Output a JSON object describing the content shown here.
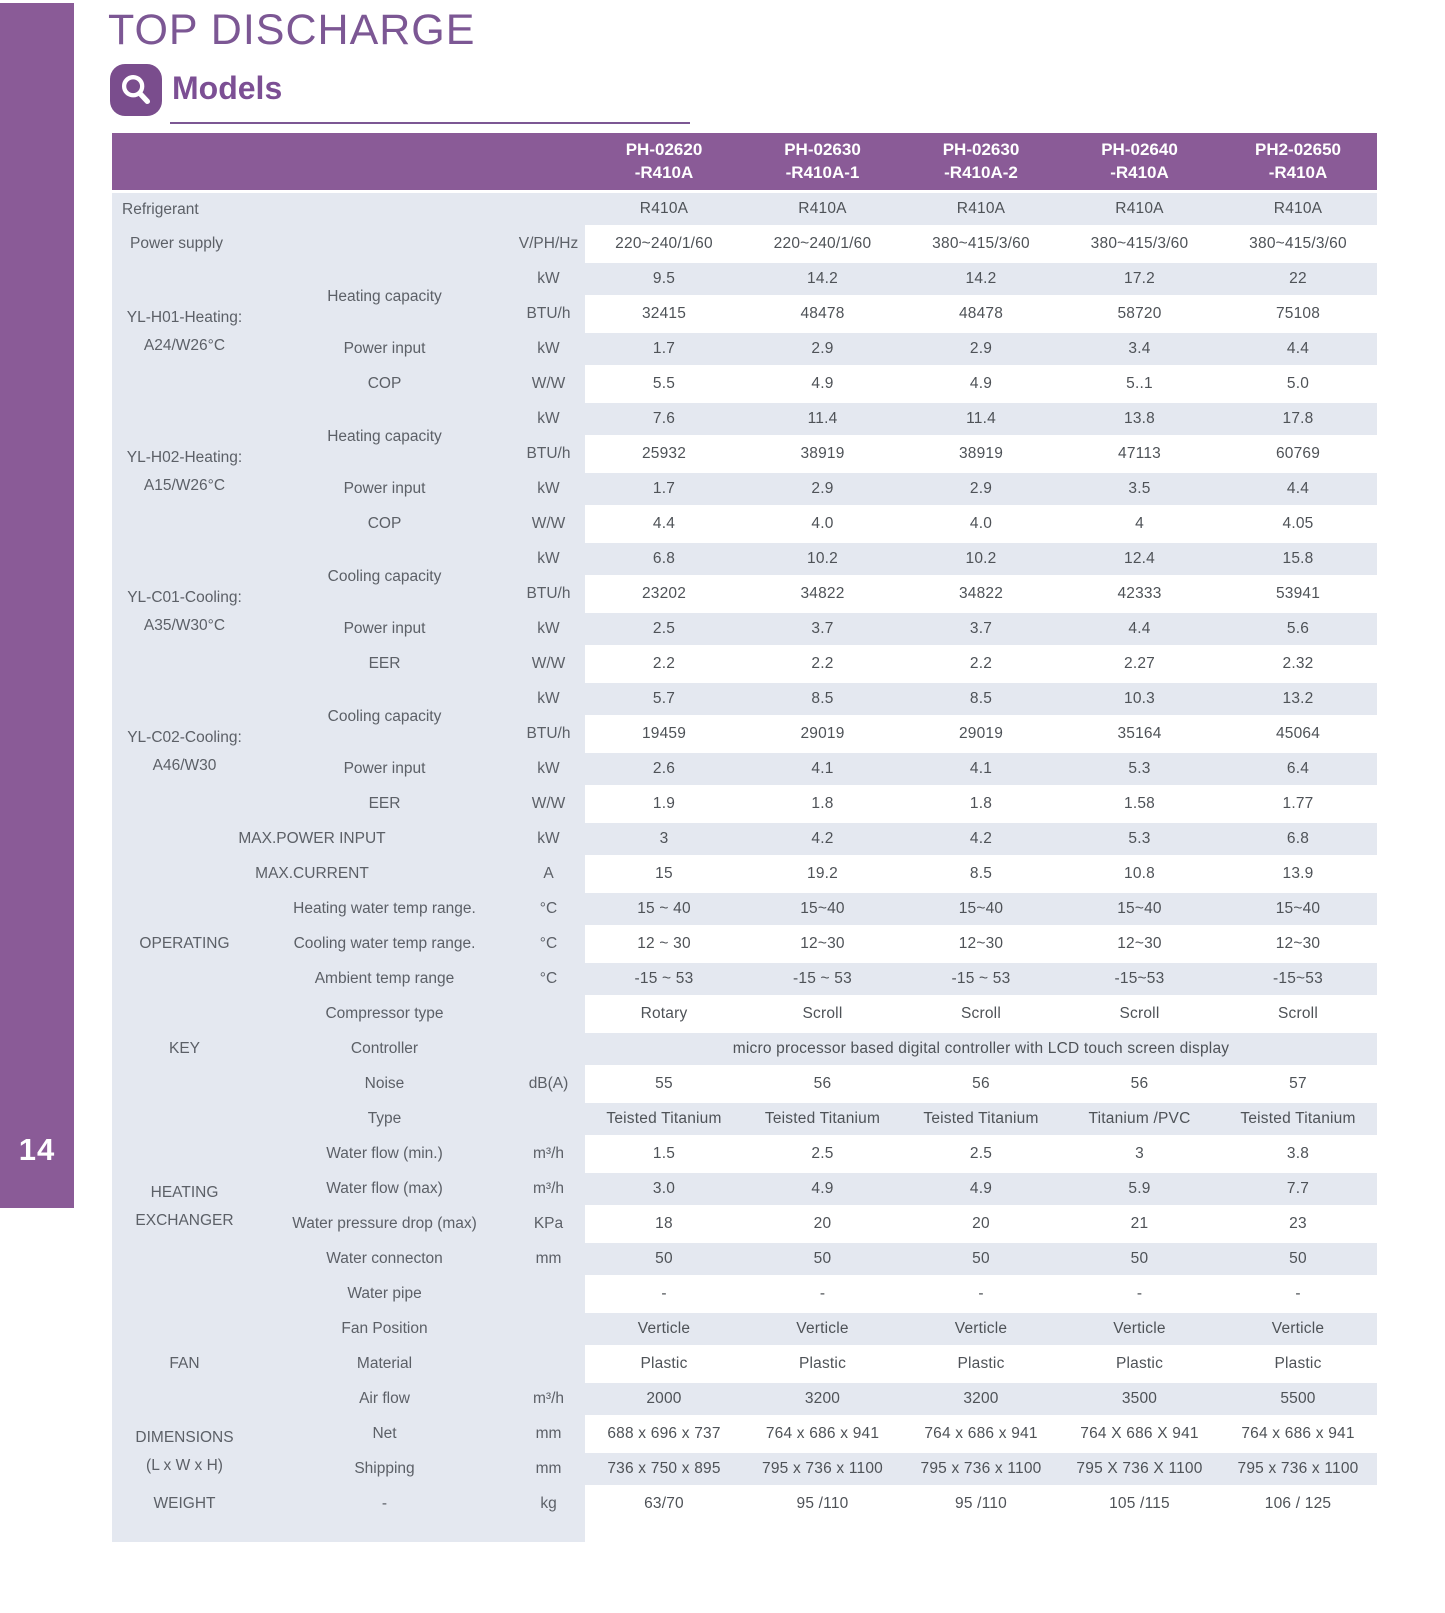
{
  "page": {
    "number": "14",
    "title": "TOP DISCHARGE",
    "subtitle": "Models"
  },
  "colors": {
    "purple": "#8a5b97",
    "purple_dark": "#7a4d8d",
    "row_gray": "#e4e8f0",
    "text_gray": "#55585e"
  },
  "icons": {
    "models_badge": "magnifier-icon"
  },
  "table": {
    "model_columns": [
      {
        "line1": "PH-02620",
        "line2": "-R410A"
      },
      {
        "line1": "PH-02630",
        "line2": "-R410A-1"
      },
      {
        "line1": "PH-02630",
        "line2": "-R410A-2"
      },
      {
        "line1": "PH-02640",
        "line2": "-R410A"
      },
      {
        "line1": "PH2-02650",
        "line2": "-R410A"
      }
    ],
    "rows": [
      {
        "label": "Refrigerant",
        "label_colspan": 3,
        "label_align": "left",
        "shade": "g",
        "values": [
          "R410A",
          "R410A",
          "R410A",
          "R410A",
          "R410A"
        ]
      },
      {
        "label": "Power supply",
        "label_colspan": 2,
        "label_align": "left",
        "indent": true,
        "unit": "V/PH/Hz",
        "shade": "w",
        "values": [
          "220~240/1/60",
          "220~240/1/60",
          "380~415/3/60",
          "380~415/3/60",
          "380~415/3/60"
        ]
      },
      {
        "group": [
          "YL-H01-Heating:",
          "A24/W26°C"
        ],
        "group_rowspan": 4,
        "param": "Heating capacity",
        "param_rowspan": 2,
        "unit": "kW",
        "shade": "g",
        "values": [
          "9.5",
          "14.2",
          "14.2",
          "17.2",
          "22"
        ]
      },
      {
        "unit": "BTU/h",
        "shade": "w",
        "values": [
          "32415",
          "48478",
          "48478",
          "58720",
          "75108"
        ]
      },
      {
        "param": "Power input",
        "unit": "kW",
        "shade": "g",
        "values": [
          "1.7",
          "2.9",
          "2.9",
          "3.4",
          "4.4"
        ]
      },
      {
        "param": "COP",
        "unit": "W/W",
        "shade": "w",
        "values": [
          "5.5",
          "4.9",
          "4.9",
          "5..1",
          "5.0"
        ]
      },
      {
        "group": [
          "YL-H02-Heating:",
          "A15/W26°C"
        ],
        "group_rowspan": 4,
        "param": "Heating capacity",
        "param_rowspan": 2,
        "unit": "kW",
        "shade": "g",
        "values": [
          "7.6",
          "11.4",
          "11.4",
          "13.8",
          "17.8"
        ]
      },
      {
        "unit": "BTU/h",
        "shade": "w",
        "values": [
          "25932",
          "38919",
          "38919",
          "47113",
          "60769"
        ]
      },
      {
        "param": "Power input",
        "unit": "kW",
        "shade": "g",
        "values": [
          "1.7",
          "2.9",
          "2.9",
          "3.5",
          "4.4"
        ]
      },
      {
        "param": "COP",
        "unit": "W/W",
        "shade": "w",
        "values": [
          "4.4",
          "4.0",
          "4.0",
          "4",
          "4.05"
        ]
      },
      {
        "group": [
          "YL-C01-Cooling:",
          "A35/W30°C"
        ],
        "group_rowspan": 4,
        "param": "Cooling capacity",
        "param_rowspan": 2,
        "unit": "kW",
        "shade": "g",
        "values": [
          "6.8",
          "10.2",
          "10.2",
          "12.4",
          "15.8"
        ]
      },
      {
        "unit": "BTU/h",
        "shade": "w",
        "values": [
          "23202",
          "34822",
          "34822",
          "42333",
          "53941"
        ]
      },
      {
        "param": "Power input",
        "unit": "kW",
        "shade": "g",
        "values": [
          "2.5",
          "3.7",
          "3.7",
          "4.4",
          "5.6"
        ]
      },
      {
        "param": "EER",
        "unit": "W/W",
        "shade": "w",
        "values": [
          "2.2",
          "2.2",
          "2.2",
          "2.27",
          "2.32"
        ]
      },
      {
        "group": [
          "YL-C02-Cooling:",
          "A46/W30"
        ],
        "group_rowspan": 4,
        "param": "Cooling capacity",
        "param_rowspan": 2,
        "unit": "kW",
        "shade": "g",
        "values": [
          "5.7",
          "8.5",
          "8.5",
          "10.3",
          "13.2"
        ]
      },
      {
        "unit": "BTU/h",
        "shade": "w",
        "values": [
          "19459",
          "29019",
          "29019",
          "35164",
          "45064"
        ]
      },
      {
        "param": "Power input",
        "unit": "kW",
        "shade": "g",
        "values": [
          "2.6",
          "4.1",
          "4.1",
          "5.3",
          "6.4"
        ]
      },
      {
        "param": "EER",
        "unit": "W/W",
        "shade": "w",
        "values": [
          "1.9",
          "1.8",
          "1.8",
          "1.58",
          "1.77"
        ]
      },
      {
        "label": "MAX.POWER INPUT",
        "label_colspan": 2,
        "unit": "kW",
        "shade": "g",
        "values": [
          "3",
          "4.2",
          "4.2",
          "5.3",
          "6.8"
        ]
      },
      {
        "label": "MAX.CURRENT",
        "label_colspan": 2,
        "unit": "A",
        "shade": "w",
        "values": [
          "15",
          "19.2",
          "8.5",
          "10.8",
          "13.9"
        ]
      },
      {
        "group": [
          "OPERATING"
        ],
        "group_rowspan": 3,
        "param": "Heating water  temp range.",
        "unit": "°C",
        "shade": "g",
        "values": [
          "15 ~ 40",
          "15~40",
          "15~40",
          "15~40",
          "15~40"
        ]
      },
      {
        "param": "Cooling water  temp range.",
        "unit": "°C",
        "shade": "w",
        "values": [
          "12 ~ 30",
          "12~30",
          "12~30",
          "12~30",
          "12~30"
        ]
      },
      {
        "param": "Ambient temp range",
        "unit": "°C",
        "shade": "g",
        "values": [
          "-15 ~ 53",
          "-15 ~ 53",
          "-15 ~ 53",
          "-15~53",
          "-15~53"
        ]
      },
      {
        "group": [
          "KEY"
        ],
        "group_rowspan": 3,
        "param": "Compressor type",
        "unit": "",
        "shade": "w",
        "values": [
          "Rotary",
          "Scroll",
          "Scroll",
          "Scroll",
          "Scroll"
        ]
      },
      {
        "param": "Controller",
        "unit": "",
        "shade": "g",
        "span_value": "micro processor based digital controller with LCD touch screen display"
      },
      {
        "param": "Noise",
        "unit": "dB(A)",
        "shade": "w",
        "values": [
          "55",
          "56",
          "56",
          "56",
          "57"
        ]
      },
      {
        "group": [
          "HEATING",
          "EXCHANGER"
        ],
        "group_rowspan": 6,
        "param": "Type",
        "unit": "",
        "shade": "g",
        "values": [
          "Teisted Titanium",
          "Teisted Titanium",
          "Teisted Titanium",
          "Titanium /PVC",
          "Teisted Titanium"
        ]
      },
      {
        "param": "Water flow (min.)",
        "unit": "m³/h",
        "shade": "w",
        "values": [
          "1.5",
          "2.5",
          "2.5",
          "3",
          "3.8"
        ]
      },
      {
        "param": "Water flow (max)",
        "unit": "m³/h",
        "shade": "g",
        "values": [
          "3.0",
          "4.9",
          "4.9",
          "5.9",
          "7.7"
        ]
      },
      {
        "param": "Water pressure drop (max)",
        "unit": "KPa",
        "shade": "w",
        "values": [
          "18",
          "20",
          "20",
          "21",
          "23"
        ]
      },
      {
        "param": "Water connecton",
        "unit": "mm",
        "shade": "g",
        "values": [
          "50",
          "50",
          "50",
          "50",
          "50"
        ]
      },
      {
        "param": "Water pipe",
        "unit": "",
        "shade": "w",
        "values": [
          "-",
          "-",
          "-",
          "-",
          "-"
        ]
      },
      {
        "group": [
          "FAN"
        ],
        "group_rowspan": 3,
        "param": "Fan Position",
        "unit": "",
        "shade": "g",
        "values": [
          "Verticle",
          "Verticle",
          "Verticle",
          "Verticle",
          "Verticle"
        ]
      },
      {
        "param": "Material",
        "unit": "",
        "shade": "w",
        "values": [
          "Plastic",
          "Plastic",
          "Plastic",
          "Plastic",
          "Plastic"
        ]
      },
      {
        "param": "Air flow",
        "unit": "m³/h",
        "shade": "g",
        "values": [
          "2000",
          "3200",
          "3200",
          "3500",
          "5500"
        ]
      },
      {
        "group": [
          "DIMENSIONS",
          "(L x W x H)"
        ],
        "group_rowspan": 2,
        "param": "Net",
        "unit": "mm",
        "shade": "w",
        "values": [
          "688 x 696 x 737",
          "764 x 686 x 941",
          "764 x 686 x 941",
          "764 X 686 X 941",
          "764 x 686 x 941"
        ]
      },
      {
        "param": "Shipping",
        "unit": "mm",
        "shade": "g",
        "values": [
          "736 x 750 x 895",
          "795 x 736 x 1100",
          "795 x 736 x 1100",
          "795 X 736 X 1100",
          "795 x 736 x 1100"
        ]
      },
      {
        "group": [
          "WEIGHT"
        ],
        "group_rowspan": 1,
        "param": "-",
        "unit": "kg",
        "shade": "w",
        "values": [
          "63/70",
          "95 /110",
          "95 /110",
          "105 /115",
          "106 / 125"
        ]
      }
    ]
  }
}
